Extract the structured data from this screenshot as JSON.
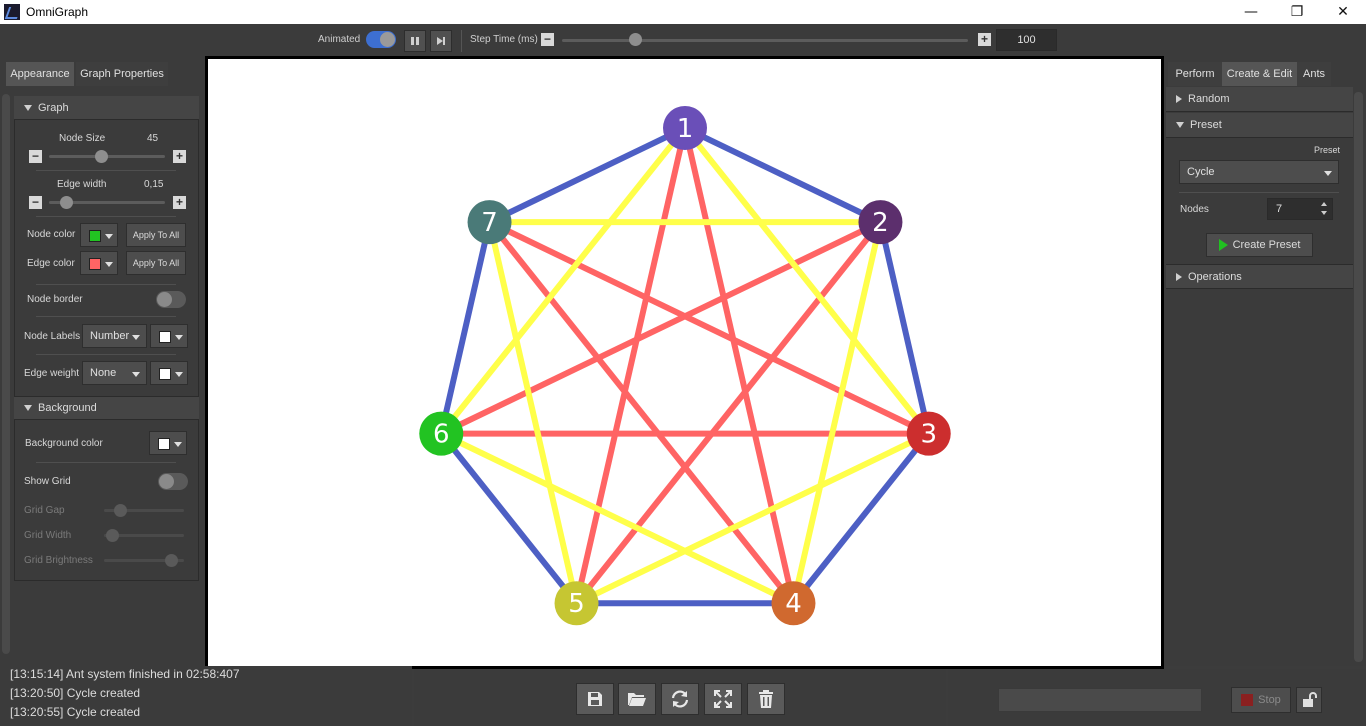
{
  "app": {
    "title": "OmniGraph",
    "icon": "omnigraph-logo-icon"
  },
  "window_controls": {
    "minimize": "—",
    "restore": "❐",
    "close": "✕"
  },
  "toolbar": {
    "animated_label": "Animated",
    "animated_on": true,
    "step_time_label": "Step Time (ms)",
    "minus": "−",
    "plus": "+",
    "step_time_value": "100",
    "step_time_level": 0.18
  },
  "left_tabs": {
    "appearance": "Appearance",
    "graph_properties": "Graph Properties"
  },
  "appearance": {
    "graph_section": "Graph",
    "node_size_label": "Node Size",
    "node_size_value": "45",
    "node_size_level": 0.45,
    "edge_width_label": "Edge width",
    "edge_width_value": "0,15",
    "edge_width_level": 0.15,
    "node_color_label": "Node color",
    "node_color": "#22c322",
    "edge_color_label": "Edge color",
    "edge_color": "#ff6464",
    "apply_to_all": "Apply To All",
    "node_border_label": "Node border",
    "node_border_on": false,
    "node_labels_label": "Node Labels",
    "node_labels_value": "Number",
    "node_labels_color": "#ffffff",
    "edge_weight_label": "Edge weight",
    "edge_weight_value": "None",
    "edge_weight_color": "#ffffff",
    "background_section": "Background",
    "background_color_label": "Background color",
    "background_color": "#ffffff",
    "show_grid_label": "Show Grid",
    "show_grid_on": false,
    "grid_gap_label": "Grid Gap",
    "grid_width_label": "Grid Width",
    "grid_brightness_label": "Grid Brightness"
  },
  "right_tabs": {
    "perform": "Perform",
    "create_edit": "Create & Edit",
    "ants": "Ants"
  },
  "create_edit": {
    "random_section": "Random",
    "preset_section": "Preset",
    "preset_small_label": "Preset",
    "preset_value": "Cycle",
    "nodes_label": "Nodes",
    "nodes_value": "7",
    "create_preset_button": "Create Preset",
    "operations_section": "Operations"
  },
  "graph": {
    "nodes": [
      {
        "label": "1",
        "color": "#6a4fb8"
      },
      {
        "label": "2",
        "color": "#5c2f6d"
      },
      {
        "label": "3",
        "color": "#cc2e2e"
      },
      {
        "label": "4",
        "color": "#d0692f"
      },
      {
        "label": "5",
        "color": "#c6c632"
      },
      {
        "label": "6",
        "color": "#22c322"
      },
      {
        "label": "7",
        "color": "#4a7a78"
      }
    ],
    "edge_colors": {
      "cycle": "#4d5fc4",
      "skip_one": "#ffff4a",
      "skip_two": "#ff6464"
    }
  },
  "log": {
    "lines": [
      "[13:15:14] Ant system finished in 02:58:407",
      "[13:20:50] Cycle created",
      "[13:20:55] Cycle created"
    ]
  },
  "bottom_actions": {
    "save_icon": "save-icon",
    "open_icon": "folder-open-icon",
    "refresh_icon": "refresh-icon",
    "fit_icon": "fit-screen-icon",
    "delete_icon": "trash-icon",
    "stop_label": "Stop",
    "lock_icon": "unlock-icon"
  }
}
